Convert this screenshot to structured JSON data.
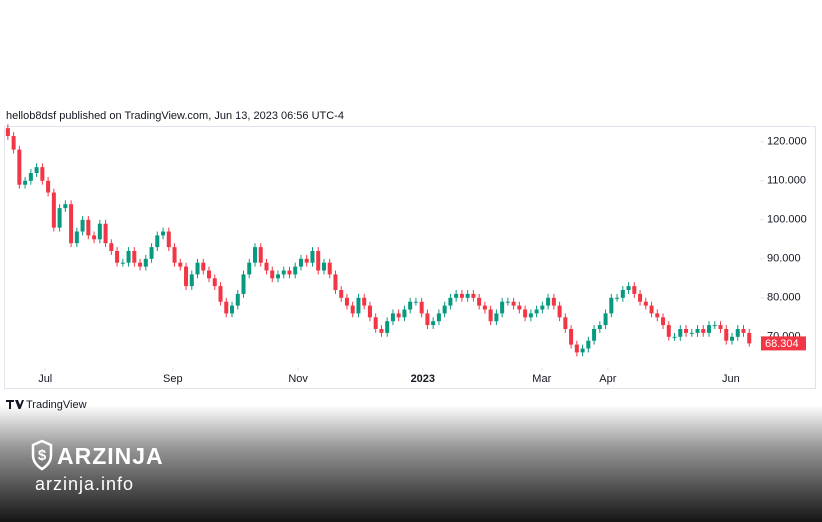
{
  "header": {
    "text": "hellob8dsf published on TradingView.com, Jun 13, 2023 06:56 UTC-4"
  },
  "chart_data": {
    "type": "candlestick",
    "open": [
      123.5,
      121.5,
      118,
      109,
      110,
      112,
      113.5,
      110,
      107,
      98,
      103,
      104,
      94,
      97,
      100,
      96,
      95,
      99,
      94,
      92,
      89,
      89,
      92,
      89,
      88,
      90,
      93,
      96,
      97,
      93,
      89,
      88,
      83,
      86,
      89,
      87,
      85,
      83,
      79,
      76,
      78,
      81,
      86,
      89,
      93,
      89,
      87,
      85,
      86,
      87,
      86,
      88,
      90,
      89,
      92,
      87,
      89,
      86,
      82,
      80,
      78,
      76,
      80,
      78,
      75,
      72,
      71,
      74,
      76,
      75,
      77,
      79,
      79,
      76,
      73,
      74,
      76,
      78,
      80,
      81,
      80,
      81,
      80,
      78,
      77,
      74,
      76,
      79,
      79,
      78,
      77,
      75,
      76,
      77,
      78,
      80,
      78,
      75,
      72,
      68,
      66,
      67,
      69,
      72,
      73,
      76,
      80,
      80,
      82,
      83,
      81,
      79,
      78,
      76,
      75,
      73,
      70,
      70,
      72,
      71,
      71,
      72,
      71,
      73,
      73,
      72,
      69,
      70,
      72,
      71
    ],
    "high": [
      124.5,
      122.5,
      119,
      111,
      113,
      114.5,
      114.5,
      111,
      108,
      104,
      105,
      105,
      98,
      101,
      101,
      97,
      100,
      100,
      95,
      93,
      90,
      93,
      93,
      90,
      91,
      94,
      97,
      98,
      98,
      94,
      90,
      89,
      87,
      90,
      90,
      88,
      86,
      84,
      80,
      79,
      82,
      87,
      90,
      94,
      94,
      90,
      88,
      87,
      88,
      88,
      89,
      91,
      91,
      93,
      93,
      90,
      90,
      87,
      83,
      81,
      79,
      81,
      81,
      79,
      76,
      73,
      75,
      77,
      77,
      78,
      80,
      80,
      80,
      77,
      75,
      77,
      79,
      81,
      82,
      82,
      82,
      82,
      81,
      79,
      78,
      77,
      80,
      80,
      80,
      79,
      78,
      77,
      78,
      79,
      81,
      81,
      79,
      76,
      73,
      69,
      68,
      70,
      73,
      74,
      77,
      81,
      81,
      83,
      84,
      84,
      82,
      80,
      79,
      77,
      76,
      74,
      71,
      73,
      73,
      72,
      73,
      73,
      74,
      74,
      74,
      73,
      71,
      73,
      73,
      72
    ],
    "low": [
      120.5,
      117,
      108,
      108,
      109,
      111,
      109,
      106,
      97,
      97,
      102,
      93,
      93,
      96,
      95,
      94,
      94,
      93,
      91,
      88,
      88,
      88,
      88,
      87,
      87,
      89,
      92,
      95,
      92,
      88,
      87,
      82,
      82,
      85,
      86,
      84,
      82,
      78,
      75,
      75,
      77,
      80,
      85,
      88,
      88,
      86,
      84,
      84,
      85,
      85,
      85,
      87,
      88,
      88,
      86,
      86,
      85,
      81,
      79,
      77,
      75,
      75,
      77,
      74,
      71,
      70,
      70,
      73,
      74,
      74,
      76,
      78,
      75,
      72,
      72,
      73,
      75,
      77,
      79,
      79,
      79,
      79,
      77,
      76,
      73,
      73,
      75,
      78,
      77,
      76,
      74,
      74,
      75,
      76,
      77,
      77,
      74,
      71,
      67,
      65,
      65,
      66,
      68,
      71,
      72,
      75,
      79,
      79,
      81,
      80,
      78,
      77,
      75,
      74,
      72,
      69,
      69,
      69,
      70,
      70,
      70,
      70,
      70,
      72,
      71,
      68,
      68,
      69,
      70,
      67.5
    ],
    "close": [
      121.5,
      118,
      109,
      110,
      112,
      113.5,
      110,
      107,
      98,
      103,
      104,
      94,
      97,
      100,
      96,
      95,
      99,
      94,
      92,
      89,
      89,
      92,
      89,
      88,
      90,
      93,
      96,
      97,
      93,
      89,
      88,
      83,
      86,
      89,
      87,
      85,
      83,
      79,
      76,
      78,
      81,
      86,
      89,
      93,
      89,
      87,
      85,
      86,
      87,
      86,
      88,
      90,
      89,
      92,
      87,
      89,
      86,
      82,
      80,
      78,
      76,
      80,
      78,
      75,
      72,
      71,
      74,
      76,
      75,
      77,
      79,
      79,
      76,
      73,
      74,
      76,
      78,
      80,
      81,
      80,
      81,
      80,
      78,
      77,
      74,
      76,
      79,
      79,
      78,
      77,
      75,
      76,
      77,
      78,
      80,
      78,
      75,
      72,
      68,
      66,
      67,
      69,
      72,
      73,
      76,
      80,
      80,
      82,
      83,
      81,
      79,
      78,
      76,
      75,
      73,
      70,
      70,
      72,
      71,
      71,
      72,
      71,
      73,
      73,
      72,
      69,
      70,
      72,
      71,
      68.304
    ],
    "up_color": "#089981",
    "down_color": "#f23645",
    "ylim": [
      62,
      123.8
    ],
    "yticks": [
      {
        "value": 70,
        "label": "70.000"
      },
      {
        "value": 80,
        "label": "80.000"
      },
      {
        "value": 90,
        "label": "90.000"
      },
      {
        "value": 100,
        "label": "100.000"
      },
      {
        "value": 110,
        "label": "110.000"
      },
      {
        "value": 120,
        "label": "120.000"
      }
    ],
    "xlim": [
      -0.5,
      130
    ],
    "xticks": [
      {
        "value": 6.5,
        "label": "Jul"
      },
      {
        "value": 28.7,
        "label": "Sep"
      },
      {
        "value": 50.5,
        "label": "Nov"
      },
      {
        "value": 72.2,
        "label": "2023"
      },
      {
        "value": 92.9,
        "label": "Mar"
      },
      {
        "value": 104.4,
        "label": "Apr"
      },
      {
        "value": 125.8,
        "label": "Jun"
      }
    ]
  },
  "footer": {
    "brand": "TradingView"
  },
  "watermark": {
    "name": "ARZINJA",
    "site": "arzinja.info"
  }
}
